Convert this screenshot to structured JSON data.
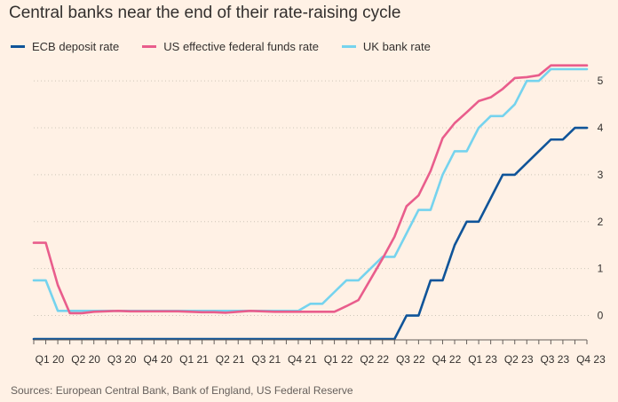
{
  "title": "Central banks near the end of their rate-raising cycle",
  "source": "Sources: European Central Bank, Bank of England, US Federal Reserve",
  "chart_data": {
    "type": "line",
    "title": "Central banks near the end of their rate-raising cycle",
    "xlabel": "",
    "ylabel": "",
    "x_ticks": [
      "Q1 20",
      "Q2 20",
      "Q3 20",
      "Q4 20",
      "Q1 21",
      "Q2 21",
      "Q3 21",
      "Q4 21",
      "Q1 22",
      "Q2 22",
      "Q3 22",
      "Q4 22",
      "Q1 23",
      "Q2 23",
      "Q3 23",
      "Q4 23"
    ],
    "x_range": [
      "2020-01",
      "2023-11"
    ],
    "ylim": [
      -0.5,
      5.4
    ],
    "y_ticks": [
      0,
      1,
      2,
      3,
      4,
      5
    ],
    "grid": "horizontal dotted",
    "legend_position": "top-left",
    "series": [
      {
        "name": "ECB deposit rate",
        "color": "#0F5499",
        "points": [
          [
            "2020-01",
            -0.5
          ],
          [
            "2022-07",
            -0.5
          ],
          [
            "2022-08",
            0.0
          ],
          [
            "2022-09",
            0.0
          ],
          [
            "2022-10",
            0.75
          ],
          [
            "2022-11",
            0.75
          ],
          [
            "2022-12",
            1.5
          ],
          [
            "2023-01",
            2.0
          ],
          [
            "2023-02",
            2.0
          ],
          [
            "2023-03",
            2.5
          ],
          [
            "2023-04",
            3.0
          ],
          [
            "2023-05",
            3.0
          ],
          [
            "2023-06",
            3.25
          ],
          [
            "2023-07",
            3.5
          ],
          [
            "2023-08",
            3.75
          ],
          [
            "2023-09",
            3.75
          ],
          [
            "2023-10",
            4.0
          ],
          [
            "2023-11",
            4.0
          ]
        ]
      },
      {
        "name": "US effective federal funds rate",
        "color": "#E95D8C",
        "points": [
          [
            "2020-01",
            1.55
          ],
          [
            "2020-02",
            1.55
          ],
          [
            "2020-03",
            0.65
          ],
          [
            "2020-04",
            0.05
          ],
          [
            "2020-05",
            0.05
          ],
          [
            "2020-06",
            0.08
          ],
          [
            "2020-07",
            0.09
          ],
          [
            "2020-08",
            0.1
          ],
          [
            "2020-09",
            0.09
          ],
          [
            "2020-10",
            0.09
          ],
          [
            "2020-11",
            0.09
          ],
          [
            "2020-12",
            0.09
          ],
          [
            "2021-01",
            0.09
          ],
          [
            "2021-02",
            0.08
          ],
          [
            "2021-03",
            0.07
          ],
          [
            "2021-04",
            0.07
          ],
          [
            "2021-05",
            0.06
          ],
          [
            "2021-06",
            0.08
          ],
          [
            "2021-07",
            0.1
          ],
          [
            "2021-08",
            0.09
          ],
          [
            "2021-09",
            0.08
          ],
          [
            "2021-10",
            0.08
          ],
          [
            "2021-11",
            0.08
          ],
          [
            "2021-12",
            0.08
          ],
          [
            "2022-01",
            0.08
          ],
          [
            "2022-02",
            0.08
          ],
          [
            "2022-03",
            0.2
          ],
          [
            "2022-04",
            0.33
          ],
          [
            "2022-05",
            0.77
          ],
          [
            "2022-06",
            1.21
          ],
          [
            "2022-07",
            1.68
          ],
          [
            "2022-08",
            2.33
          ],
          [
            "2022-09",
            2.56
          ],
          [
            "2022-10",
            3.08
          ],
          [
            "2022-11",
            3.78
          ],
          [
            "2022-12",
            4.1
          ],
          [
            "2023-01",
            4.33
          ],
          [
            "2023-02",
            4.57
          ],
          [
            "2023-03",
            4.65
          ],
          [
            "2023-04",
            4.83
          ],
          [
            "2023-05",
            5.06
          ],
          [
            "2023-06",
            5.08
          ],
          [
            "2023-07",
            5.12
          ],
          [
            "2023-08",
            5.33
          ],
          [
            "2023-09",
            5.33
          ],
          [
            "2023-10",
            5.33
          ],
          [
            "2023-11",
            5.33
          ]
        ]
      },
      {
        "name": "UK bank rate",
        "color": "#75D3EE",
        "points": [
          [
            "2020-01",
            0.75
          ],
          [
            "2020-02",
            0.75
          ],
          [
            "2020-03",
            0.1
          ],
          [
            "2021-11",
            0.1
          ],
          [
            "2021-12",
            0.25
          ],
          [
            "2022-01",
            0.25
          ],
          [
            "2022-02",
            0.5
          ],
          [
            "2022-03",
            0.75
          ],
          [
            "2022-04",
            0.75
          ],
          [
            "2022-05",
            1.0
          ],
          [
            "2022-06",
            1.25
          ],
          [
            "2022-07",
            1.25
          ],
          [
            "2022-08",
            1.75
          ],
          [
            "2022-09",
            2.25
          ],
          [
            "2022-10",
            2.25
          ],
          [
            "2022-11",
            3.0
          ],
          [
            "2022-12",
            3.5
          ],
          [
            "2023-01",
            3.5
          ],
          [
            "2023-02",
            4.0
          ],
          [
            "2023-03",
            4.25
          ],
          [
            "2023-04",
            4.25
          ],
          [
            "2023-05",
            4.5
          ],
          [
            "2023-06",
            5.0
          ],
          [
            "2023-07",
            5.0
          ],
          [
            "2023-08",
            5.25
          ],
          [
            "2023-09",
            5.25
          ],
          [
            "2023-10",
            5.25
          ],
          [
            "2023-11",
            5.25
          ]
        ]
      }
    ]
  }
}
